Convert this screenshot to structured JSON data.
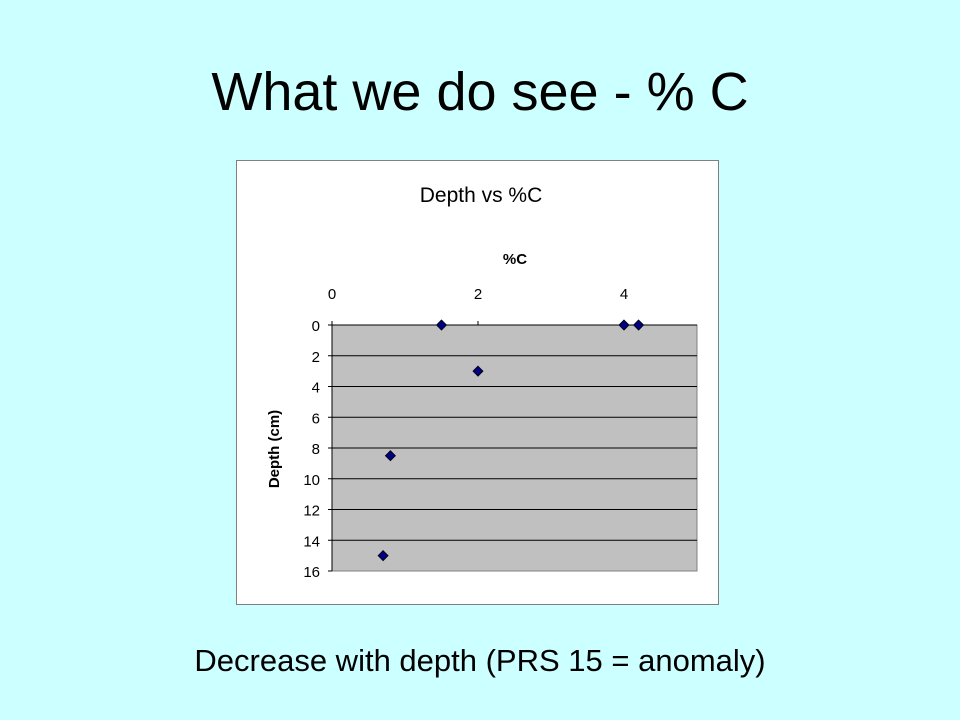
{
  "slide": {
    "title": "What we do see - % C",
    "caption": "Decrease with depth (PRS 15 = anomaly)"
  },
  "chart_data": {
    "type": "scatter",
    "title": "Depth vs %C",
    "xlabel": "%C",
    "ylabel": "Depth (cm)",
    "x_axis_position": "top",
    "y_axis_inverted": true,
    "xlim": [
      0,
      5
    ],
    "ylim": [
      0,
      16
    ],
    "x_ticks": [
      0,
      2,
      4
    ],
    "y_ticks": [
      0,
      2,
      4,
      6,
      8,
      10,
      12,
      14,
      16
    ],
    "grid": "horizontal",
    "legend": "none",
    "plot_background": "#c0c0c0",
    "marker": "diamond",
    "marker_color": "#000080",
    "points": [
      {
        "x": 1.5,
        "y": 0
      },
      {
        "x": 4.0,
        "y": 0
      },
      {
        "x": 4.2,
        "y": 0
      },
      {
        "x": 2.0,
        "y": 3
      },
      {
        "x": 0.8,
        "y": 8.5
      },
      {
        "x": 0.7,
        "y": 15
      }
    ]
  }
}
